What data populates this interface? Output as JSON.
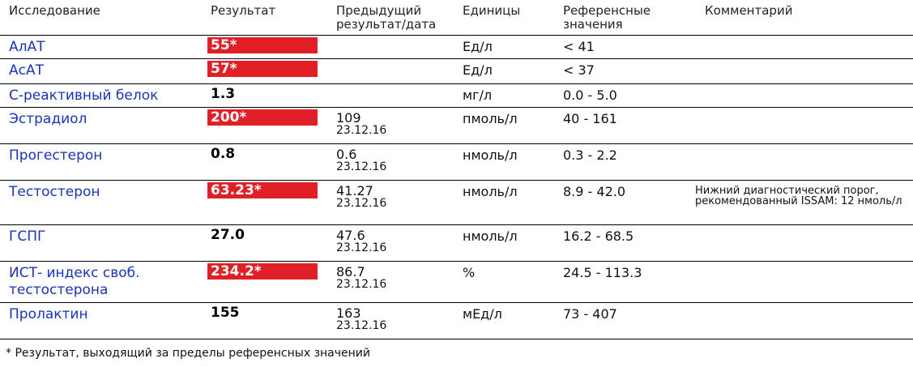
{
  "header": {
    "study": "Исследование",
    "result": "Результат",
    "previous_line1": "Предыдущий",
    "previous_line2": "результат/дата",
    "units": "Единицы",
    "reference_line1": "Референсные",
    "reference_line2": "значения",
    "comment": "Комментарий"
  },
  "colors": {
    "flag_background": "#e01f26",
    "name_text": "#1a33b8"
  },
  "rows": [
    {
      "name": "АлАТ",
      "result": "55*",
      "flag": true,
      "prev_value": "",
      "prev_date": "",
      "units": "Ед/л",
      "reference": "< 41",
      "comment": ""
    },
    {
      "name": "АсАТ",
      "result": "57*",
      "flag": true,
      "prev_value": "",
      "prev_date": "",
      "units": "Ед/л",
      "reference": "< 37",
      "comment": ""
    },
    {
      "name": "С-реактивный белок",
      "result": "1.3",
      "flag": false,
      "prev_value": "",
      "prev_date": "",
      "units": "мг/л",
      "reference": "0.0 - 5.0",
      "comment": ""
    },
    {
      "name": "Эстрадиол",
      "result": "200*",
      "flag": true,
      "prev_value": "109",
      "prev_date": "23.12.16",
      "units": "пмоль/л",
      "reference": "40 - 161",
      "comment": ""
    },
    {
      "name": "Прогестерон",
      "result": "0.8",
      "flag": false,
      "prev_value": "0.6",
      "prev_date": "23.12.16",
      "units": "нмоль/л",
      "reference": "0.3 - 2.2",
      "comment": ""
    },
    {
      "name": "Тестостерон",
      "result": "63.23*",
      "flag": true,
      "prev_value": "41.27",
      "prev_date": "23.12.16",
      "units": "нмоль/л",
      "reference": "8.9 - 42.0",
      "comment": "Нижний диагностический порог, рекомендованный ISSAM: 12 нмоль/л"
    },
    {
      "name": "ГСПГ",
      "result": "27.0",
      "flag": false,
      "prev_value": "47.6",
      "prev_date": "23.12.16",
      "units": "нмоль/л",
      "reference": "16.2 - 68.5",
      "comment": ""
    },
    {
      "name": "ИСТ- индекс своб. тестостерона",
      "result": "234.2*",
      "flag": true,
      "prev_value": "86.7",
      "prev_date": "23.12.16",
      "units": "%",
      "reference": "24.5 - 113.3",
      "comment": ""
    },
    {
      "name": "Пролактин",
      "result": "155",
      "flag": false,
      "prev_value": "163",
      "prev_date": "23.12.16",
      "units": "мЕд/л",
      "reference": "73 - 407",
      "comment": ""
    }
  ],
  "footnote": "* Результат, выходящий за пределы референсных значений"
}
